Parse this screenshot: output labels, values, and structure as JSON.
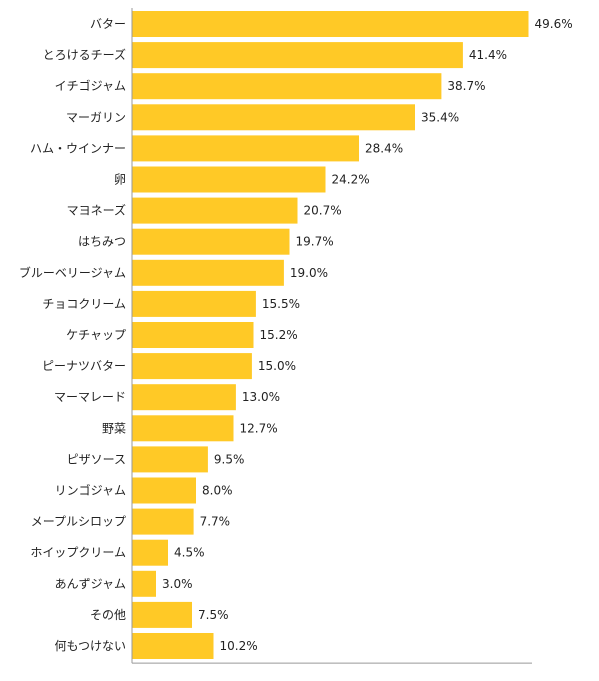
{
  "chart_data": {
    "type": "bar",
    "orientation": "horizontal",
    "categories": [
      "バター",
      "とろけるチーズ",
      "イチゴジャム",
      "マーガリン",
      "ハム・ウインナー",
      "卵",
      "マヨネーズ",
      "はちみつ",
      "ブルーベリージャム",
      "チョコクリーム",
      "ケチャップ",
      "ピーナツバター",
      "マーマレード",
      "野菜",
      "ピザソース",
      "リンゴジャム",
      "メープルシロップ",
      "ホイップクリーム",
      "あんずジャム",
      "その他",
      "何もつけない"
    ],
    "values": [
      49.6,
      41.4,
      38.7,
      35.4,
      28.4,
      24.2,
      20.7,
      19.7,
      19.0,
      15.5,
      15.2,
      15.0,
      13.0,
      12.7,
      9.5,
      8.0,
      7.7,
      4.5,
      3.0,
      7.5,
      10.2
    ],
    "value_labels": [
      "49.6%",
      "41.4%",
      "38.7%",
      "35.4%",
      "28.4%",
      "24.2%",
      "20.7%",
      "19.7%",
      "19.0%",
      "15.5%",
      "15.2%",
      "15.0%",
      "13.0%",
      "12.7%",
      "9.5%",
      "8.0%",
      "7.7%",
      "4.5%",
      "3.0%",
      "7.5%",
      "10.2%"
    ],
    "xlim": [
      0,
      50
    ],
    "grid": false,
    "legend": "none",
    "bar_color": "#ffc926",
    "axis_color": "#999999"
  }
}
